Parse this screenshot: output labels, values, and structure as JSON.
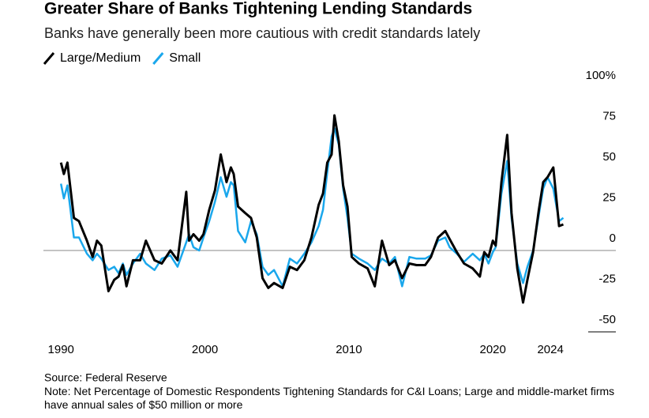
{
  "chart_data": {
    "type": "line",
    "title": "Greater Share of Banks Tightening Lending Standards",
    "subtitle": "Banks have generally been more cautious with credit standards lately",
    "source": "Source: Federal Reserve",
    "note": "Note: Net Percentage of Domestic Respondents Tightening Standards for C&I Loans; Large and middle-market firms have annual sales of $50 million or more",
    "x": [
      1990.0,
      1990.2,
      1990.45,
      1990.9,
      1991.25,
      1991.8,
      1992.2,
      1992.5,
      1992.8,
      1993.3,
      1993.7,
      1994.0,
      1994.3,
      1994.55,
      1995.0,
      1995.5,
      1995.9,
      1996.5,
      1997.0,
      1997.6,
      1998.1,
      1998.7,
      1998.9,
      1999.2,
      1999.6,
      1999.9,
      2000.3,
      2000.7,
      2001.1,
      2001.5,
      2001.8,
      2002.0,
      2002.3,
      2002.8,
      2003.2,
      2003.6,
      2004.0,
      2004.4,
      2004.8,
      2005.4,
      2005.9,
      2006.4,
      2006.9,
      2007.4,
      2007.9,
      2008.2,
      2008.5,
      2008.8,
      2009.0,
      2009.3,
      2009.6,
      2009.9,
      2010.2,
      2010.7,
      2011.3,
      2011.8,
      2012.3,
      2012.8,
      2013.2,
      2013.7,
      2014.2,
      2014.7,
      2015.3,
      2015.7,
      2016.2,
      2016.7,
      2017.0,
      2017.5,
      2018.0,
      2018.6,
      2019.1,
      2019.4,
      2019.7,
      2020.0,
      2020.2,
      2020.6,
      2021.0,
      2021.3,
      2021.7,
      2022.1,
      2022.4,
      2022.8,
      2023.2,
      2023.5,
      2023.8,
      2024.2,
      2024.6,
      2024.9
    ],
    "series": [
      {
        "name": "Large/Medium",
        "color": "#000000",
        "values": [
          54,
          47,
          54,
          20,
          18,
          6,
          -4,
          6,
          3,
          -25,
          -18,
          -16,
          -9,
          -22,
          -6,
          -6,
          6,
          -6,
          -8,
          0,
          -6,
          36,
          6,
          10,
          6,
          10,
          25,
          37,
          59,
          42,
          51,
          47,
          27,
          23,
          20,
          8,
          -17,
          -23,
          -20,
          -23,
          -10,
          -12,
          -6,
          8,
          28,
          35,
          54,
          59,
          83,
          67,
          40,
          27,
          -4,
          -8,
          -11,
          -22,
          6,
          -9,
          -6,
          -17,
          -8,
          -9,
          -9,
          -4,
          8,
          12,
          7,
          -1,
          -8,
          -11,
          -16,
          -1,
          -4,
          6,
          3,
          42,
          71,
          23,
          -11,
          -32,
          -18,
          -1,
          25,
          42,
          45,
          51,
          15,
          16
        ]
      },
      {
        "name": "Small",
        "color": "#1aa7ec",
        "values": [
          41,
          32,
          40,
          8,
          8,
          -2,
          -6,
          -2,
          -5,
          -12,
          -10,
          -14,
          -8,
          -15,
          -8,
          -2,
          -8,
          -12,
          -5,
          -3,
          -10,
          5,
          10,
          2,
          0,
          8,
          18,
          30,
          45,
          33,
          42,
          40,
          12,
          5,
          18,
          10,
          -10,
          -15,
          -12,
          -22,
          -5,
          -8,
          -2,
          5,
          15,
          25,
          48,
          70,
          75,
          65,
          38,
          20,
          -2,
          -5,
          -8,
          -12,
          -5,
          -8,
          -4,
          -22,
          -4,
          -5,
          -5,
          -3,
          6,
          8,
          2,
          -2,
          -7,
          -2,
          -6,
          -2,
          -8,
          -1,
          2,
          35,
          55,
          20,
          -8,
          -20,
          -10,
          0,
          22,
          38,
          45,
          38,
          18,
          20
        ]
      }
    ],
    "xlim": [
      1989,
      2026.9
    ],
    "xticks": [
      1990,
      2000,
      2010,
      2020,
      2024
    ],
    "ylim": [
      -50,
      100
    ],
    "yticks": [
      {
        "value": 100,
        "label": "100%"
      },
      75,
      50,
      25,
      0,
      -25,
      -50
    ]
  }
}
